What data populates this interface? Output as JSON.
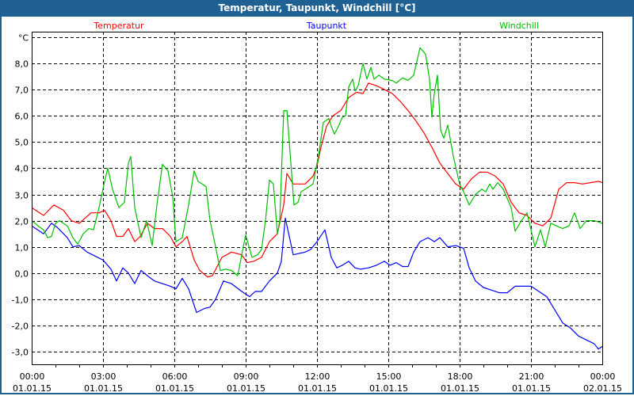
{
  "window": {
    "title": "Temperatur, Taupunkt, Windchill [°C]"
  },
  "chart_data": {
    "type": "line",
    "title": "Temperatur, Taupunkt, Windchill [°C]",
    "ylabel": "°C",
    "xlabel": "",
    "x_unit": "minutes since 01.01.15 00:00",
    "xlim": [
      0,
      1440
    ],
    "ylim": [
      -3.48,
      9.21
    ],
    "grid": true,
    "legend_placement": "top",
    "yticks": [
      {
        "value": 9,
        "label": "°C"
      },
      {
        "value": 8,
        "label": "8,0"
      },
      {
        "value": 7,
        "label": "7,0"
      },
      {
        "value": 6,
        "label": "6,0"
      },
      {
        "value": 5,
        "label": "5,0"
      },
      {
        "value": 4,
        "label": "4,0"
      },
      {
        "value": 3,
        "label": "3,0"
      },
      {
        "value": 2,
        "label": "2,0"
      },
      {
        "value": 1,
        "label": "1,0"
      },
      {
        "value": 0,
        "label": "0,0"
      },
      {
        "value": -1,
        "label": "-1,0"
      },
      {
        "value": -2,
        "label": "-2,0"
      },
      {
        "value": -3,
        "label": "-3,0"
      }
    ],
    "xticks": [
      {
        "value": 0,
        "time": "00:00",
        "date": "01.01.15"
      },
      {
        "value": 180,
        "time": "03:00",
        "date": "01.01.15"
      },
      {
        "value": 360,
        "time": "06:00",
        "date": "01.01.15"
      },
      {
        "value": 540,
        "time": "09:00",
        "date": "01.01.15"
      },
      {
        "value": 720,
        "time": "12:00",
        "date": "01.01.15"
      },
      {
        "value": 900,
        "time": "15:00",
        "date": "01.01.15"
      },
      {
        "value": 1080,
        "time": "18:00",
        "date": "01.01.15"
      },
      {
        "value": 1260,
        "time": "21:00",
        "date": "01.01.15"
      },
      {
        "value": 1440,
        "time": "00:00",
        "date": "02.01.15"
      }
    ],
    "series": [
      {
        "name": "Temperatur",
        "color": "#ff0000",
        "points": [
          [
            0,
            2.5
          ],
          [
            20,
            2.3
          ],
          [
            30,
            2.2
          ],
          [
            56,
            2.6
          ],
          [
            80,
            2.4
          ],
          [
            100,
            2.0
          ],
          [
            120,
            1.9
          ],
          [
            150,
            2.3
          ],
          [
            170,
            2.3
          ],
          [
            184,
            2.4
          ],
          [
            200,
            2.0
          ],
          [
            214,
            1.4
          ],
          [
            230,
            1.4
          ],
          [
            244,
            1.7
          ],
          [
            260,
            1.2
          ],
          [
            274,
            1.4
          ],
          [
            292,
            1.9
          ],
          [
            310,
            1.7
          ],
          [
            330,
            1.7
          ],
          [
            350,
            1.4
          ],
          [
            364,
            1.0
          ],
          [
            380,
            1.2
          ],
          [
            392,
            1.4
          ],
          [
            410,
            0.5
          ],
          [
            424,
            0.1
          ],
          [
            444,
            -0.15
          ],
          [
            456,
            -0.1
          ],
          [
            480,
            0.6
          ],
          [
            504,
            0.8
          ],
          [
            530,
            0.7
          ],
          [
            544,
            0.4
          ],
          [
            560,
            0.45
          ],
          [
            580,
            0.6
          ],
          [
            600,
            1.2
          ],
          [
            620,
            1.5
          ],
          [
            636,
            2.6
          ],
          [
            644,
            3.8
          ],
          [
            660,
            3.4
          ],
          [
            690,
            3.4
          ],
          [
            710,
            3.7
          ],
          [
            720,
            4.1
          ],
          [
            730,
            4.8
          ],
          [
            744,
            5.6
          ],
          [
            760,
            6.0
          ],
          [
            780,
            6.2
          ],
          [
            800,
            6.7
          ],
          [
            820,
            6.9
          ],
          [
            836,
            6.85
          ],
          [
            850,
            7.25
          ],
          [
            870,
            7.15
          ],
          [
            890,
            7.0
          ],
          [
            910,
            6.85
          ],
          [
            930,
            6.55
          ],
          [
            950,
            6.2
          ],
          [
            970,
            5.8
          ],
          [
            990,
            5.35
          ],
          [
            1010,
            4.8
          ],
          [
            1030,
            4.2
          ],
          [
            1050,
            3.8
          ],
          [
            1070,
            3.4
          ],
          [
            1090,
            3.2
          ],
          [
            1110,
            3.6
          ],
          [
            1130,
            3.85
          ],
          [
            1150,
            3.85
          ],
          [
            1170,
            3.7
          ],
          [
            1190,
            3.4
          ],
          [
            1210,
            2.7
          ],
          [
            1230,
            2.3
          ],
          [
            1250,
            2.2
          ],
          [
            1270,
            1.9
          ],
          [
            1290,
            1.8
          ],
          [
            1310,
            2.1
          ],
          [
            1330,
            3.2
          ],
          [
            1350,
            3.45
          ],
          [
            1370,
            3.45
          ],
          [
            1390,
            3.4
          ],
          [
            1410,
            3.45
          ],
          [
            1430,
            3.5
          ],
          [
            1440,
            3.45
          ]
        ]
      },
      {
        "name": "Taupunkt",
        "color": "#0000ff",
        "points": [
          [
            0,
            1.8
          ],
          [
            20,
            1.6
          ],
          [
            30,
            1.5
          ],
          [
            50,
            1.9
          ],
          [
            64,
            1.75
          ],
          [
            90,
            1.35
          ],
          [
            104,
            1.0
          ],
          [
            120,
            1.05
          ],
          [
            140,
            0.8
          ],
          [
            160,
            0.65
          ],
          [
            180,
            0.5
          ],
          [
            200,
            0.15
          ],
          [
            214,
            -0.3
          ],
          [
            230,
            0.2
          ],
          [
            244,
            0
          ],
          [
            260,
            -0.4
          ],
          [
            276,
            0.1
          ],
          [
            296,
            -0.15
          ],
          [
            310,
            -0.3
          ],
          [
            330,
            -0.4
          ],
          [
            350,
            -0.5
          ],
          [
            364,
            -0.6
          ],
          [
            380,
            -0.2
          ],
          [
            396,
            -0.6
          ],
          [
            416,
            -1.5
          ],
          [
            436,
            -1.35
          ],
          [
            450,
            -1.3
          ],
          [
            464,
            -1.0
          ],
          [
            484,
            -0.3
          ],
          [
            504,
            -0.4
          ],
          [
            530,
            -0.7
          ],
          [
            550,
            -0.9
          ],
          [
            564,
            -0.7
          ],
          [
            580,
            -0.7
          ],
          [
            600,
            -0.3
          ],
          [
            620,
            0
          ],
          [
            630,
            0.45
          ],
          [
            640,
            2.1
          ],
          [
            660,
            0.7
          ],
          [
            690,
            0.8
          ],
          [
            704,
            0.9
          ],
          [
            720,
            1.2
          ],
          [
            740,
            1.65
          ],
          [
            756,
            0.6
          ],
          [
            770,
            0.2
          ],
          [
            784,
            0.3
          ],
          [
            800,
            0.45
          ],
          [
            816,
            0.2
          ],
          [
            830,
            0.15
          ],
          [
            850,
            0.2
          ],
          [
            870,
            0.3
          ],
          [
            890,
            0.45
          ],
          [
            904,
            0.3
          ],
          [
            920,
            0.4
          ],
          [
            936,
            0.25
          ],
          [
            950,
            0.25
          ],
          [
            964,
            0.8
          ],
          [
            980,
            1.2
          ],
          [
            1000,
            1.35
          ],
          [
            1016,
            1.2
          ],
          [
            1030,
            1.35
          ],
          [
            1050,
            1.0
          ],
          [
            1070,
            1.05
          ],
          [
            1090,
            0.95
          ],
          [
            1104,
            0.2
          ],
          [
            1120,
            -0.3
          ],
          [
            1140,
            -0.55
          ],
          [
            1160,
            -0.65
          ],
          [
            1180,
            -0.75
          ],
          [
            1200,
            -0.75
          ],
          [
            1220,
            -0.5
          ],
          [
            1240,
            -0.5
          ],
          [
            1260,
            -0.5
          ],
          [
            1280,
            -0.7
          ],
          [
            1300,
            -0.9
          ],
          [
            1320,
            -1.4
          ],
          [
            1340,
            -1.9
          ],
          [
            1360,
            -2.1
          ],
          [
            1380,
            -2.4
          ],
          [
            1400,
            -2.55
          ],
          [
            1420,
            -2.7
          ],
          [
            1430,
            -2.9
          ],
          [
            1440,
            -2.8
          ]
        ]
      },
      {
        "name": "Windchill",
        "color": "#00c000",
        "points": [
          [
            0,
            2.0
          ],
          [
            16,
            1.8
          ],
          [
            30,
            1.65
          ],
          [
            40,
            1.35
          ],
          [
            50,
            1.4
          ],
          [
            60,
            1.9
          ],
          [
            70,
            2.0
          ],
          [
            90,
            1.8
          ],
          [
            104,
            1.35
          ],
          [
            116,
            1.1
          ],
          [
            130,
            1.5
          ],
          [
            144,
            1.7
          ],
          [
            156,
            1.65
          ],
          [
            170,
            2.5
          ],
          [
            184,
            3.5
          ],
          [
            192,
            4.0
          ],
          [
            204,
            3.2
          ],
          [
            220,
            2.5
          ],
          [
            234,
            2.7
          ],
          [
            244,
            4.2
          ],
          [
            250,
            4.45
          ],
          [
            260,
            2.5
          ],
          [
            276,
            1.35
          ],
          [
            290,
            2.0
          ],
          [
            304,
            1.05
          ],
          [
            316,
            2.6
          ],
          [
            330,
            4.15
          ],
          [
            344,
            3.9
          ],
          [
            356,
            2.9
          ],
          [
            364,
            1.2
          ],
          [
            380,
            1.35
          ],
          [
            396,
            2.6
          ],
          [
            410,
            3.9
          ],
          [
            420,
            3.5
          ],
          [
            440,
            3.3
          ],
          [
            450,
            2.0
          ],
          [
            460,
            1.3
          ],
          [
            476,
            0.1
          ],
          [
            490,
            0.15
          ],
          [
            504,
            0.1
          ],
          [
            520,
            -0.1
          ],
          [
            530,
            0.7
          ],
          [
            540,
            1.45
          ],
          [
            556,
            0.6
          ],
          [
            570,
            0.7
          ],
          [
            580,
            0.9
          ],
          [
            590,
            2.0
          ],
          [
            600,
            3.55
          ],
          [
            610,
            3.4
          ],
          [
            620,
            1.5
          ],
          [
            626,
            2.0
          ],
          [
            636,
            6.2
          ],
          [
            644,
            6.2
          ],
          [
            654,
            4.2
          ],
          [
            662,
            2.6
          ],
          [
            672,
            2.7
          ],
          [
            680,
            3.1
          ],
          [
            700,
            3.3
          ],
          [
            710,
            3.4
          ],
          [
            724,
            4.5
          ],
          [
            736,
            5.75
          ],
          [
            750,
            5.9
          ],
          [
            756,
            5.6
          ],
          [
            764,
            5.3
          ],
          [
            774,
            5.6
          ],
          [
            784,
            5.95
          ],
          [
            792,
            6.0
          ],
          [
            800,
            7.1
          ],
          [
            810,
            7.4
          ],
          [
            816,
            6.95
          ],
          [
            824,
            7.15
          ],
          [
            836,
            8.0
          ],
          [
            846,
            7.4
          ],
          [
            856,
            7.85
          ],
          [
            864,
            7.4
          ],
          [
            876,
            7.55
          ],
          [
            890,
            7.4
          ],
          [
            910,
            7.35
          ],
          [
            920,
            7.25
          ],
          [
            936,
            7.45
          ],
          [
            950,
            7.35
          ],
          [
            964,
            7.55
          ],
          [
            980,
            8.6
          ],
          [
            994,
            8.35
          ],
          [
            1004,
            7.4
          ],
          [
            1010,
            5.95
          ],
          [
            1016,
            6.85
          ],
          [
            1024,
            7.55
          ],
          [
            1032,
            5.45
          ],
          [
            1040,
            5.15
          ],
          [
            1050,
            5.65
          ],
          [
            1064,
            4.45
          ],
          [
            1080,
            3.4
          ],
          [
            1090,
            3.1
          ],
          [
            1104,
            2.6
          ],
          [
            1120,
            3.0
          ],
          [
            1136,
            3.2
          ],
          [
            1146,
            3.1
          ],
          [
            1156,
            3.4
          ],
          [
            1164,
            3.2
          ],
          [
            1176,
            3.45
          ],
          [
            1190,
            3.2
          ],
          [
            1210,
            2.5
          ],
          [
            1220,
            1.6
          ],
          [
            1236,
            2.0
          ],
          [
            1250,
            2.3
          ],
          [
            1260,
            1.65
          ],
          [
            1270,
            1.0
          ],
          [
            1284,
            1.65
          ],
          [
            1296,
            1.0
          ],
          [
            1310,
            1.9
          ],
          [
            1324,
            1.8
          ],
          [
            1340,
            1.7
          ],
          [
            1356,
            1.8
          ],
          [
            1370,
            2.3
          ],
          [
            1384,
            1.7
          ],
          [
            1400,
            2.0
          ],
          [
            1420,
            2.0
          ],
          [
            1440,
            1.9
          ]
        ]
      }
    ]
  }
}
